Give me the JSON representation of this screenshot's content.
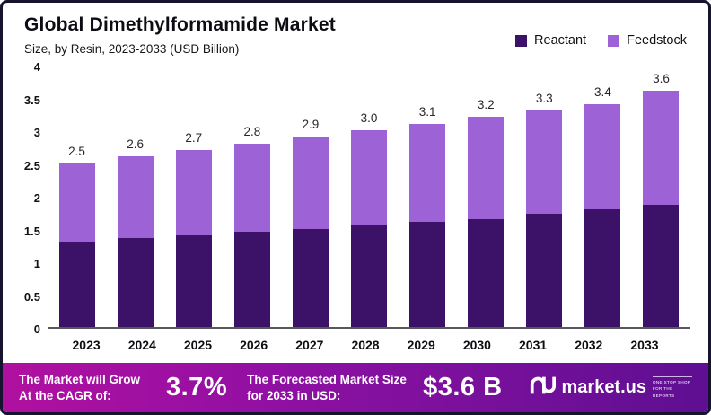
{
  "header": {
    "title": "Global Dimethylformamide Market",
    "subtitle": "Size, by Resin, 2023-2033 (USD Billion)"
  },
  "legend": [
    {
      "label": "Reactant",
      "color": "#3c1168"
    },
    {
      "label": "Feedstock",
      "color": "#9d63d6"
    }
  ],
  "chart_data": {
    "type": "bar",
    "stacked": true,
    "title": "Global Dimethylformamide Market",
    "subtitle": "Size, by Resin, 2023-2033 (USD Billion)",
    "categories": [
      "2023",
      "2024",
      "2025",
      "2026",
      "2027",
      "2028",
      "2029",
      "2030",
      "2031",
      "2032",
      "2033"
    ],
    "series": [
      {
        "name": "Reactant",
        "color": "#3c1168",
        "values": [
          1.3,
          1.35,
          1.4,
          1.45,
          1.5,
          1.55,
          1.6,
          1.65,
          1.72,
          1.8,
          1.87
        ]
      },
      {
        "name": "Feedstock",
        "color": "#9d63d6",
        "values": [
          1.2,
          1.25,
          1.3,
          1.35,
          1.4,
          1.45,
          1.5,
          1.55,
          1.58,
          1.6,
          1.73
        ]
      }
    ],
    "totals": [
      "2.5",
      "2.6",
      "2.7",
      "2.8",
      "2.9",
      "3.0",
      "3.1",
      "3.2",
      "3.3",
      "3.4",
      "3.6"
    ],
    "ylim": [
      0,
      4
    ],
    "yticks": [
      "0",
      "0.5",
      "1",
      "1.5",
      "2",
      "2.5",
      "3",
      "3.5",
      "4"
    ],
    "legend_position": "top-right",
    "grid": false
  },
  "footer": {
    "cagr_label": "The Market will Grow At the CAGR of:",
    "cagr_value": "3.7%",
    "forecast_label": "The Forecasted Market Size for 2033 in USD:",
    "forecast_value": "$3.6 B",
    "brand": "market.us",
    "brand_tagline": "One Stop Shop For The Reports"
  }
}
